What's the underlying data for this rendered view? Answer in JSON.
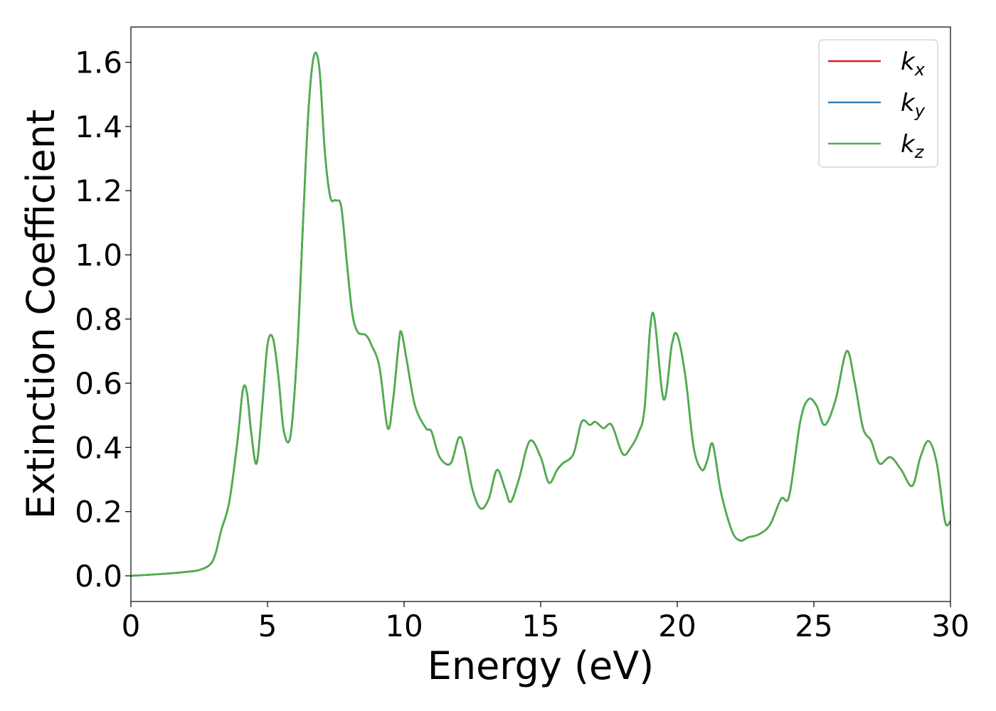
{
  "chart_data": {
    "type": "line",
    "xlabel": "Energy (eV)",
    "ylabel": "Extinction Coefficient",
    "xlim": [
      0,
      30
    ],
    "ylim": [
      -0.08,
      1.71
    ],
    "x_ticks": [
      0,
      5,
      10,
      15,
      20,
      25,
      30
    ],
    "x_tick_labels": [
      "0",
      "5",
      "10",
      "15",
      "20",
      "25",
      "30"
    ],
    "y_ticks": [
      0.0,
      0.2,
      0.4,
      0.6,
      0.8,
      1.0,
      1.2,
      1.4,
      1.6
    ],
    "y_tick_labels": [
      "0.0",
      "0.2",
      "0.4",
      "0.6",
      "0.8",
      "1.0",
      "1.2",
      "1.4",
      "1.6"
    ],
    "grid": false,
    "legend_position": "top-right",
    "series": [
      {
        "base": "k",
        "sub": "x",
        "color": "#e41a1c",
        "x": [
          0,
          1,
          2,
          2.5,
          2.9,
          3.1,
          3.3,
          3.6,
          3.9,
          4.1,
          4.25,
          4.4,
          4.6,
          4.8,
          5.0,
          5.2,
          5.4,
          5.6,
          5.85,
          6.1,
          6.3,
          6.5,
          6.7,
          6.9,
          7.1,
          7.3,
          7.5,
          7.7,
          7.9,
          8.1,
          8.3,
          8.6,
          8.8,
          9.1,
          9.4,
          9.6,
          9.8,
          9.9,
          10.1,
          10.4,
          10.8,
          11.0,
          11.3,
          11.7,
          12.0,
          12.2,
          12.5,
          12.8,
          13.1,
          13.4,
          13.7,
          13.9,
          14.2,
          14.6,
          15.0,
          15.3,
          15.6,
          15.8,
          16.2,
          16.5,
          16.8,
          17.0,
          17.3,
          17.6,
          18.0,
          18.3,
          18.6,
          18.8,
          19.1,
          19.5,
          19.8,
          20.0,
          20.3,
          20.6,
          20.9,
          21.1,
          21.3,
          21.6,
          22.0,
          22.3,
          22.6,
          23.0,
          23.4,
          23.8,
          24.1,
          24.5,
          24.8,
          25.1,
          25.4,
          25.8,
          26.2,
          26.5,
          26.8,
          27.1,
          27.4,
          27.8,
          28.2,
          28.6,
          28.9,
          29.2,
          29.5,
          29.8,
          30.0
        ],
        "y": [
          0.0,
          0.005,
          0.012,
          0.018,
          0.035,
          0.07,
          0.14,
          0.23,
          0.42,
          0.58,
          0.57,
          0.45,
          0.35,
          0.52,
          0.72,
          0.74,
          0.62,
          0.45,
          0.44,
          0.72,
          1.1,
          1.45,
          1.62,
          1.58,
          1.32,
          1.18,
          1.17,
          1.15,
          0.98,
          0.82,
          0.76,
          0.75,
          0.72,
          0.65,
          0.46,
          0.55,
          0.72,
          0.76,
          0.67,
          0.53,
          0.46,
          0.45,
          0.37,
          0.35,
          0.43,
          0.4,
          0.27,
          0.21,
          0.24,
          0.33,
          0.27,
          0.23,
          0.3,
          0.42,
          0.37,
          0.29,
          0.33,
          0.35,
          0.38,
          0.48,
          0.47,
          0.48,
          0.46,
          0.47,
          0.38,
          0.4,
          0.45,
          0.52,
          0.82,
          0.55,
          0.72,
          0.75,
          0.62,
          0.4,
          0.33,
          0.36,
          0.41,
          0.26,
          0.14,
          0.11,
          0.12,
          0.13,
          0.16,
          0.24,
          0.25,
          0.48,
          0.55,
          0.53,
          0.47,
          0.55,
          0.7,
          0.6,
          0.46,
          0.42,
          0.35,
          0.37,
          0.33,
          0.28,
          0.37,
          0.42,
          0.35,
          0.17,
          0.17
        ]
      },
      {
        "base": "k",
        "sub": "y",
        "color": "#377eb8",
        "x": [
          0,
          1,
          2,
          2.5,
          2.9,
          3.1,
          3.3,
          3.6,
          3.9,
          4.1,
          4.25,
          4.4,
          4.6,
          4.8,
          5.0,
          5.2,
          5.4,
          5.6,
          5.85,
          6.1,
          6.3,
          6.5,
          6.7,
          6.9,
          7.1,
          7.3,
          7.5,
          7.7,
          7.9,
          8.1,
          8.3,
          8.6,
          8.8,
          9.1,
          9.4,
          9.6,
          9.8,
          9.9,
          10.1,
          10.4,
          10.8,
          11.0,
          11.3,
          11.7,
          12.0,
          12.2,
          12.5,
          12.8,
          13.1,
          13.4,
          13.7,
          13.9,
          14.2,
          14.6,
          15.0,
          15.3,
          15.6,
          15.8,
          16.2,
          16.5,
          16.8,
          17.0,
          17.3,
          17.6,
          18.0,
          18.3,
          18.6,
          18.8,
          19.1,
          19.5,
          19.8,
          20.0,
          20.3,
          20.6,
          20.9,
          21.1,
          21.3,
          21.6,
          22.0,
          22.3,
          22.6,
          23.0,
          23.4,
          23.8,
          24.1,
          24.5,
          24.8,
          25.1,
          25.4,
          25.8,
          26.2,
          26.5,
          26.8,
          27.1,
          27.4,
          27.8,
          28.2,
          28.6,
          28.9,
          29.2,
          29.5,
          29.8,
          30.0
        ],
        "y": [
          0.0,
          0.005,
          0.012,
          0.018,
          0.035,
          0.07,
          0.14,
          0.23,
          0.42,
          0.58,
          0.57,
          0.45,
          0.35,
          0.52,
          0.72,
          0.74,
          0.62,
          0.45,
          0.44,
          0.72,
          1.1,
          1.45,
          1.62,
          1.58,
          1.32,
          1.18,
          1.17,
          1.15,
          0.98,
          0.82,
          0.76,
          0.75,
          0.72,
          0.65,
          0.46,
          0.55,
          0.72,
          0.76,
          0.67,
          0.53,
          0.46,
          0.45,
          0.37,
          0.35,
          0.43,
          0.4,
          0.27,
          0.21,
          0.24,
          0.33,
          0.27,
          0.23,
          0.3,
          0.42,
          0.37,
          0.29,
          0.33,
          0.35,
          0.38,
          0.48,
          0.47,
          0.48,
          0.46,
          0.47,
          0.38,
          0.4,
          0.45,
          0.52,
          0.82,
          0.55,
          0.72,
          0.75,
          0.62,
          0.4,
          0.33,
          0.36,
          0.41,
          0.26,
          0.14,
          0.11,
          0.12,
          0.13,
          0.16,
          0.24,
          0.25,
          0.48,
          0.55,
          0.53,
          0.47,
          0.55,
          0.7,
          0.6,
          0.46,
          0.42,
          0.35,
          0.37,
          0.33,
          0.28,
          0.37,
          0.42,
          0.35,
          0.17,
          0.17
        ]
      },
      {
        "base": "k",
        "sub": "z",
        "color": "#4daf4a",
        "x": [
          0,
          1,
          2,
          2.5,
          2.9,
          3.1,
          3.3,
          3.6,
          3.9,
          4.1,
          4.25,
          4.4,
          4.6,
          4.8,
          5.0,
          5.2,
          5.4,
          5.6,
          5.85,
          6.1,
          6.3,
          6.5,
          6.7,
          6.9,
          7.1,
          7.3,
          7.5,
          7.7,
          7.9,
          8.1,
          8.3,
          8.6,
          8.8,
          9.1,
          9.4,
          9.6,
          9.8,
          9.9,
          10.1,
          10.4,
          10.8,
          11.0,
          11.3,
          11.7,
          12.0,
          12.2,
          12.5,
          12.8,
          13.1,
          13.4,
          13.7,
          13.9,
          14.2,
          14.6,
          15.0,
          15.3,
          15.6,
          15.8,
          16.2,
          16.5,
          16.8,
          17.0,
          17.3,
          17.6,
          18.0,
          18.3,
          18.6,
          18.8,
          19.1,
          19.5,
          19.8,
          20.0,
          20.3,
          20.6,
          20.9,
          21.1,
          21.3,
          21.6,
          22.0,
          22.3,
          22.6,
          23.0,
          23.4,
          23.8,
          24.1,
          24.5,
          24.8,
          25.1,
          25.4,
          25.8,
          26.2,
          26.5,
          26.8,
          27.1,
          27.4,
          27.8,
          28.2,
          28.6,
          28.9,
          29.2,
          29.5,
          29.8,
          30.0
        ],
        "y": [
          0.0,
          0.005,
          0.012,
          0.018,
          0.035,
          0.07,
          0.14,
          0.23,
          0.42,
          0.58,
          0.57,
          0.45,
          0.35,
          0.52,
          0.72,
          0.74,
          0.62,
          0.45,
          0.44,
          0.72,
          1.1,
          1.45,
          1.62,
          1.58,
          1.32,
          1.18,
          1.17,
          1.15,
          0.98,
          0.82,
          0.76,
          0.75,
          0.72,
          0.65,
          0.46,
          0.55,
          0.72,
          0.76,
          0.67,
          0.53,
          0.46,
          0.45,
          0.37,
          0.35,
          0.43,
          0.4,
          0.27,
          0.21,
          0.24,
          0.33,
          0.27,
          0.23,
          0.3,
          0.42,
          0.37,
          0.29,
          0.33,
          0.35,
          0.38,
          0.48,
          0.47,
          0.48,
          0.46,
          0.47,
          0.38,
          0.4,
          0.45,
          0.52,
          0.82,
          0.55,
          0.72,
          0.75,
          0.62,
          0.4,
          0.33,
          0.36,
          0.41,
          0.26,
          0.14,
          0.11,
          0.12,
          0.13,
          0.16,
          0.24,
          0.25,
          0.48,
          0.55,
          0.53,
          0.47,
          0.55,
          0.7,
          0.6,
          0.46,
          0.42,
          0.35,
          0.37,
          0.33,
          0.28,
          0.37,
          0.42,
          0.35,
          0.17,
          0.17
        ]
      }
    ]
  }
}
